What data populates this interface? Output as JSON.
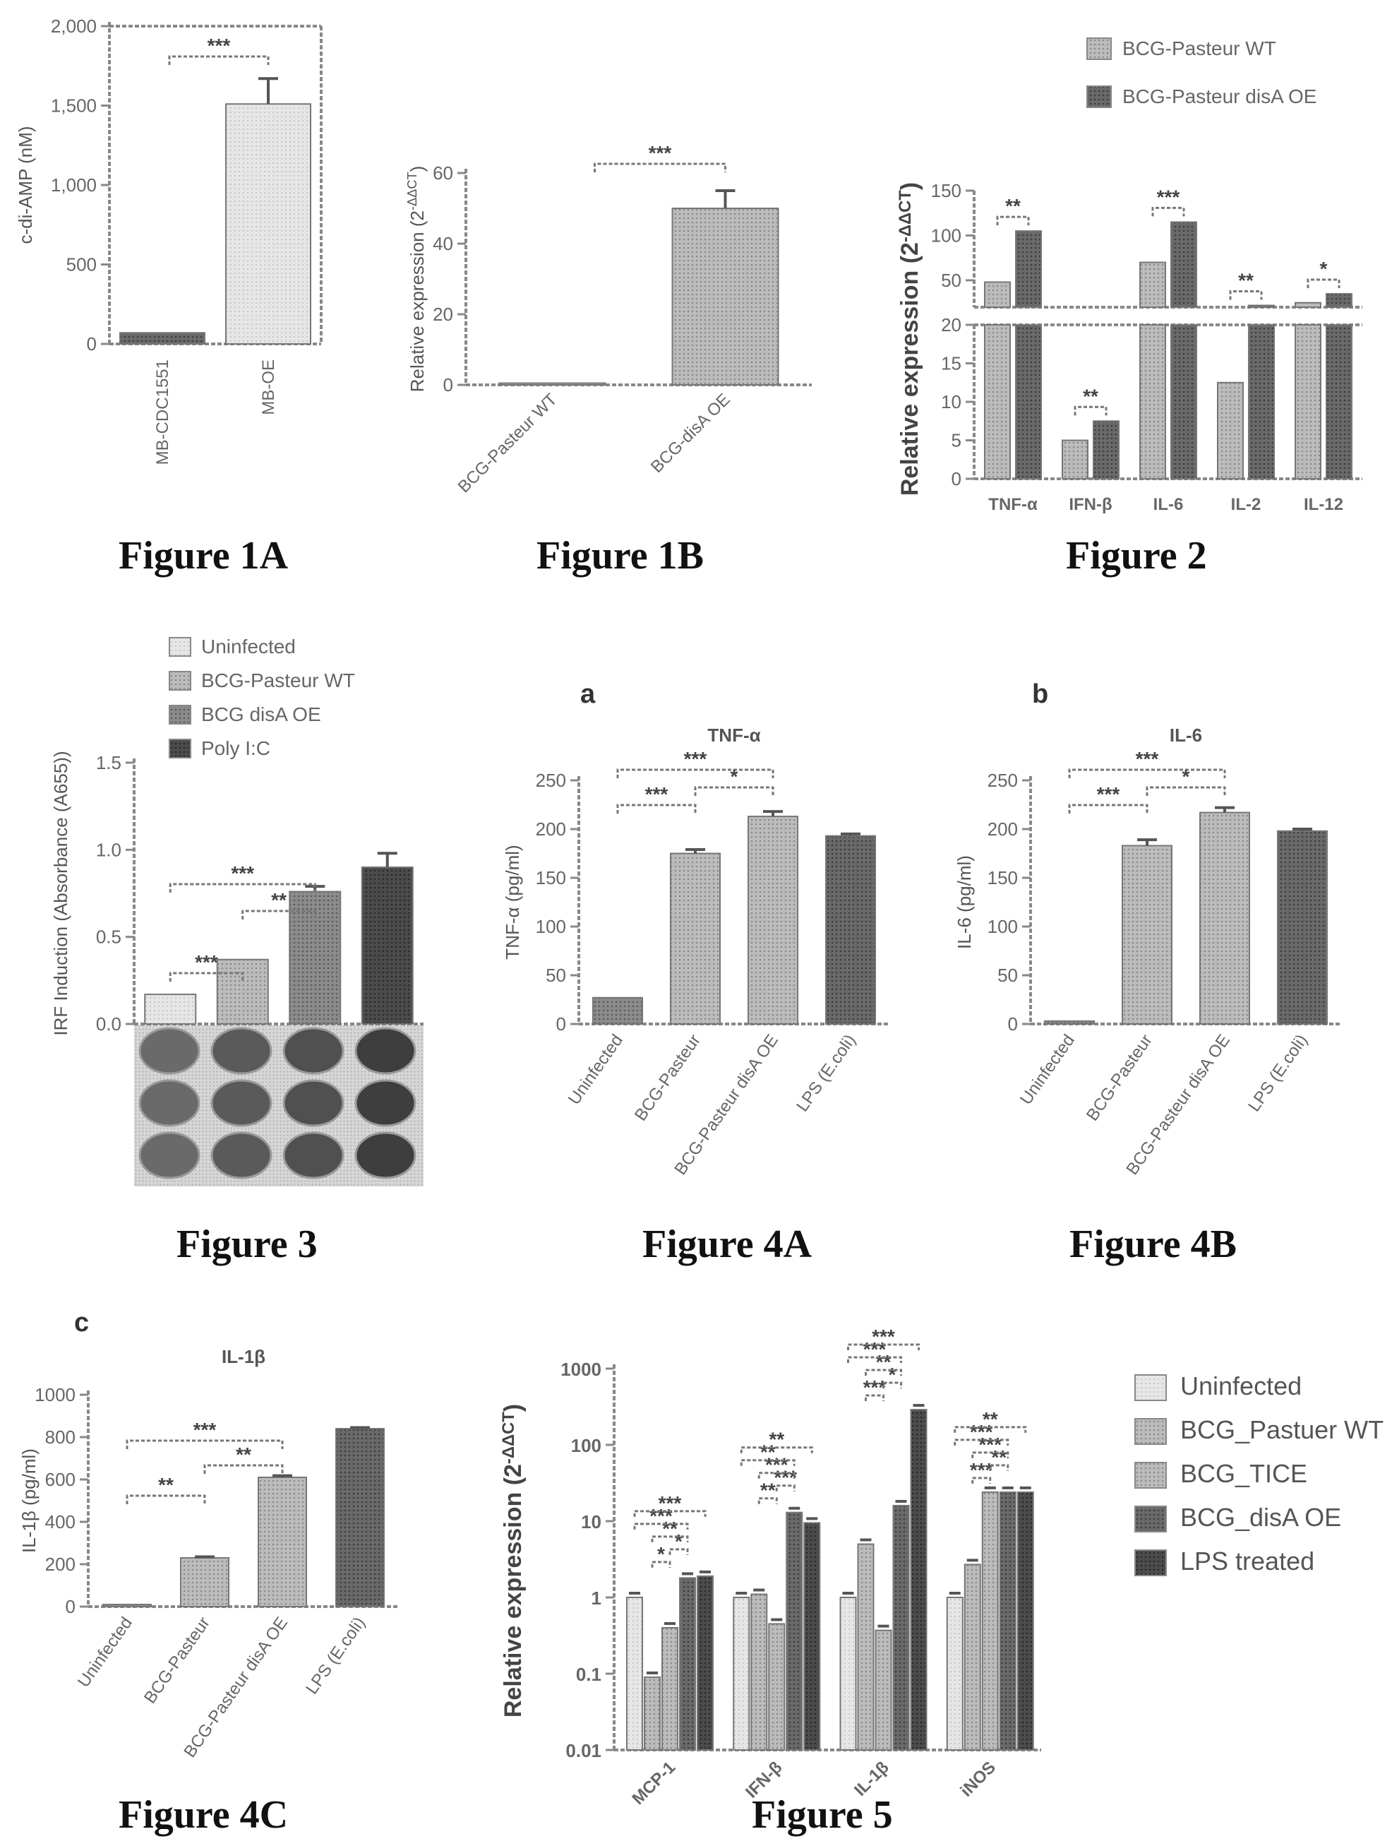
{
  "figure_captions": {
    "fig1a": "Figure 1A",
    "fig1b": "Figure 1B",
    "fig2": "Figure 2",
    "fig3": "Figure 3",
    "fig4a": "Figure 4A",
    "fig4b": "Figure 4B",
    "fig4c": "Figure 4C",
    "fig5": "Figure 5"
  },
  "panel_letters": {
    "a": "a",
    "b": "b",
    "c": "c"
  },
  "colors": {
    "light": "#e2e2e2",
    "mid": "#b8b8b8",
    "dark": "#7a7a7a",
    "darker": "#5a5a5a",
    "darkest": "#3e3e3e"
  },
  "chart_data": [
    {
      "id": "fig1a",
      "type": "bar",
      "ylabel": "c-di-AMP (nM)",
      "ylim": [
        0,
        2000
      ],
      "yticks": [
        0,
        500,
        1000,
        1500,
        2000
      ],
      "ytick_labels": [
        "0",
        "500",
        "1,000",
        "1,500",
        "2,000"
      ],
      "categories": [
        "MB-CDC1551",
        "MB-OE"
      ],
      "values": [
        70,
        1510
      ],
      "errors": [
        0,
        160
      ],
      "significance": [
        {
          "from": 0,
          "to": 1,
          "label": "***"
        }
      ]
    },
    {
      "id": "fig1b",
      "type": "bar",
      "ylabel": "Relative expression (2^-ΔΔCT)",
      "ylim": [
        0,
        60
      ],
      "yticks": [
        0,
        20,
        40,
        60
      ],
      "ytick_labels": [
        "0",
        "20",
        "40",
        "60"
      ],
      "categories": [
        "BCG-Pasteur WT",
        "BCG-disA OE"
      ],
      "values": [
        0.5,
        50
      ],
      "errors": [
        0,
        5
      ],
      "significance": [
        {
          "from": 0,
          "to": 1,
          "label": "***"
        }
      ]
    },
    {
      "id": "fig2",
      "type": "bar",
      "ylabel": "Relative expression (2^-ΔΔCT)",
      "categories": [
        "TNF-α",
        "IFN-β",
        "IL-6",
        "IL-2",
        "IL-12"
      ],
      "legend": [
        "BCG-Pasteur WT",
        "BCG-Pasteur disA OE"
      ],
      "legend_position": "top-right",
      "broken_axis": true,
      "lower_ylim": [
        0,
        20
      ],
      "lower_yticks": [
        "0",
        "5",
        "10",
        "15",
        "20"
      ],
      "upper_ylim": [
        20,
        150
      ],
      "upper_yticks": [
        "50",
        "100",
        "150"
      ],
      "series": [
        {
          "values": [
            48,
            5,
            70,
            12.5,
            25
          ]
        },
        {
          "values": [
            105,
            7.5,
            115,
            22,
            35
          ]
        }
      ],
      "significance": [
        "**",
        "**",
        "***",
        "**",
        "*"
      ]
    },
    {
      "id": "fig3",
      "type": "bar",
      "ylabel": "IRF Induction (Absorbance (A655))",
      "ylim": [
        0,
        1.5
      ],
      "yticks": [
        0,
        0.5,
        1.0,
        1.5
      ],
      "ytick_labels": [
        "0.0",
        "0.5",
        "1.0",
        "1.5"
      ],
      "legend": [
        "Uninfected",
        "BCG-Pasteur WT",
        "BCG disA OE",
        "Poly I:C"
      ],
      "legend_position": "top",
      "values": [
        0.17,
        0.37,
        0.76,
        0.9
      ],
      "errors": [
        0,
        0,
        0.03,
        0.08
      ],
      "significance": [
        {
          "from": 0,
          "to": 1,
          "label": "***"
        },
        {
          "from": 0,
          "to": 2,
          "label": "***"
        },
        {
          "from": 1,
          "to": 2,
          "label": "**"
        }
      ]
    },
    {
      "id": "fig4a",
      "type": "bar",
      "title": "TNF-α",
      "ylabel": "TNF-α (pg/ml)",
      "ylim": [
        0,
        250
      ],
      "yticks": [
        0,
        50,
        100,
        150,
        200,
        250
      ],
      "ytick_labels": [
        "0",
        "50",
        "100",
        "150",
        "200",
        "250"
      ],
      "categories": [
        "Uninfected",
        "BCG-Pasteur",
        "BCG-Pasteur disA OE",
        "LPS (E.coli)"
      ],
      "values": [
        27,
        175,
        213,
        193
      ],
      "errors": [
        0,
        4,
        5,
        2
      ],
      "significance": [
        {
          "from": 0,
          "to": 2,
          "label": "***"
        },
        {
          "from": 0,
          "to": 1,
          "label": "***"
        },
        {
          "from": 1,
          "to": 2,
          "label": "*"
        }
      ]
    },
    {
      "id": "fig4b",
      "type": "bar",
      "title": "IL-6",
      "ylabel": "IL-6 (pg/ml)",
      "ylim": [
        0,
        250
      ],
      "yticks": [
        0,
        50,
        100,
        150,
        200,
        250
      ],
      "ytick_labels": [
        "0",
        "50",
        "100",
        "150",
        "200",
        "250"
      ],
      "categories": [
        "Uninfected",
        "BCG-Pasteur",
        "BCG-Pasteur disA OE",
        "LPS (E.coli)"
      ],
      "values": [
        3,
        183,
        217,
        198
      ],
      "errors": [
        0,
        6,
        5,
        2
      ],
      "significance": [
        {
          "from": 0,
          "to": 2,
          "label": "***"
        },
        {
          "from": 0,
          "to": 1,
          "label": "***"
        },
        {
          "from": 1,
          "to": 2,
          "label": "*"
        }
      ]
    },
    {
      "id": "fig4c",
      "type": "bar",
      "title": "IL-1β",
      "ylabel": "IL-1β (pg/ml)",
      "ylim": [
        0,
        1000
      ],
      "yticks": [
        0,
        200,
        400,
        600,
        800,
        1000
      ],
      "ytick_labels": [
        "0",
        "200",
        "400",
        "600",
        "800",
        "1000"
      ],
      "categories": [
        "Uninfected",
        "BCG-Pasteur",
        "BCG-Pasteur disA OE",
        "LPS (E.coli)"
      ],
      "values": [
        10,
        230,
        610,
        840
      ],
      "errors": [
        0,
        5,
        8,
        5
      ],
      "significance": [
        {
          "from": 0,
          "to": 1,
          "label": "**"
        },
        {
          "from": 0,
          "to": 2,
          "label": "***"
        },
        {
          "from": 1,
          "to": 2,
          "label": "**"
        }
      ]
    },
    {
      "id": "fig5",
      "type": "bar",
      "ylabel": "Relative expression (2^-ΔΔCT)",
      "yscale": "log",
      "ylim": [
        0.01,
        1000
      ],
      "yticks": [
        0.01,
        0.1,
        1,
        10,
        100,
        1000
      ],
      "ytick_labels": [
        "0.01",
        "0.1",
        "1",
        "10",
        "100",
        "1000"
      ],
      "categories": [
        "MCP-1",
        "IFN-β",
        "IL-1β",
        "iNOS"
      ],
      "legend": [
        "Uninfected",
        "BCG_Pastuer WT",
        "BCG_TICE",
        "BCG_disA OE",
        "LPS treated"
      ],
      "legend_position": "right",
      "series": [
        {
          "values": [
            1,
            1,
            1,
            1
          ]
        },
        {
          "values": [
            0.09,
            1.1,
            5,
            2.7
          ]
        },
        {
          "values": [
            0.4,
            0.45,
            0.37,
            24
          ]
        },
        {
          "values": [
            1.8,
            13,
            16,
            24
          ]
        },
        {
          "values": [
            1.9,
            9.5,
            290,
            24
          ]
        }
      ],
      "significance_labels": [
        "*",
        "*",
        "**",
        "***",
        "***",
        "**",
        "***",
        "***",
        "**",
        "**",
        "***",
        "*",
        "**",
        "***",
        "***",
        "***",
        "**",
        "***",
        "***",
        "**",
        "***"
      ]
    }
  ]
}
